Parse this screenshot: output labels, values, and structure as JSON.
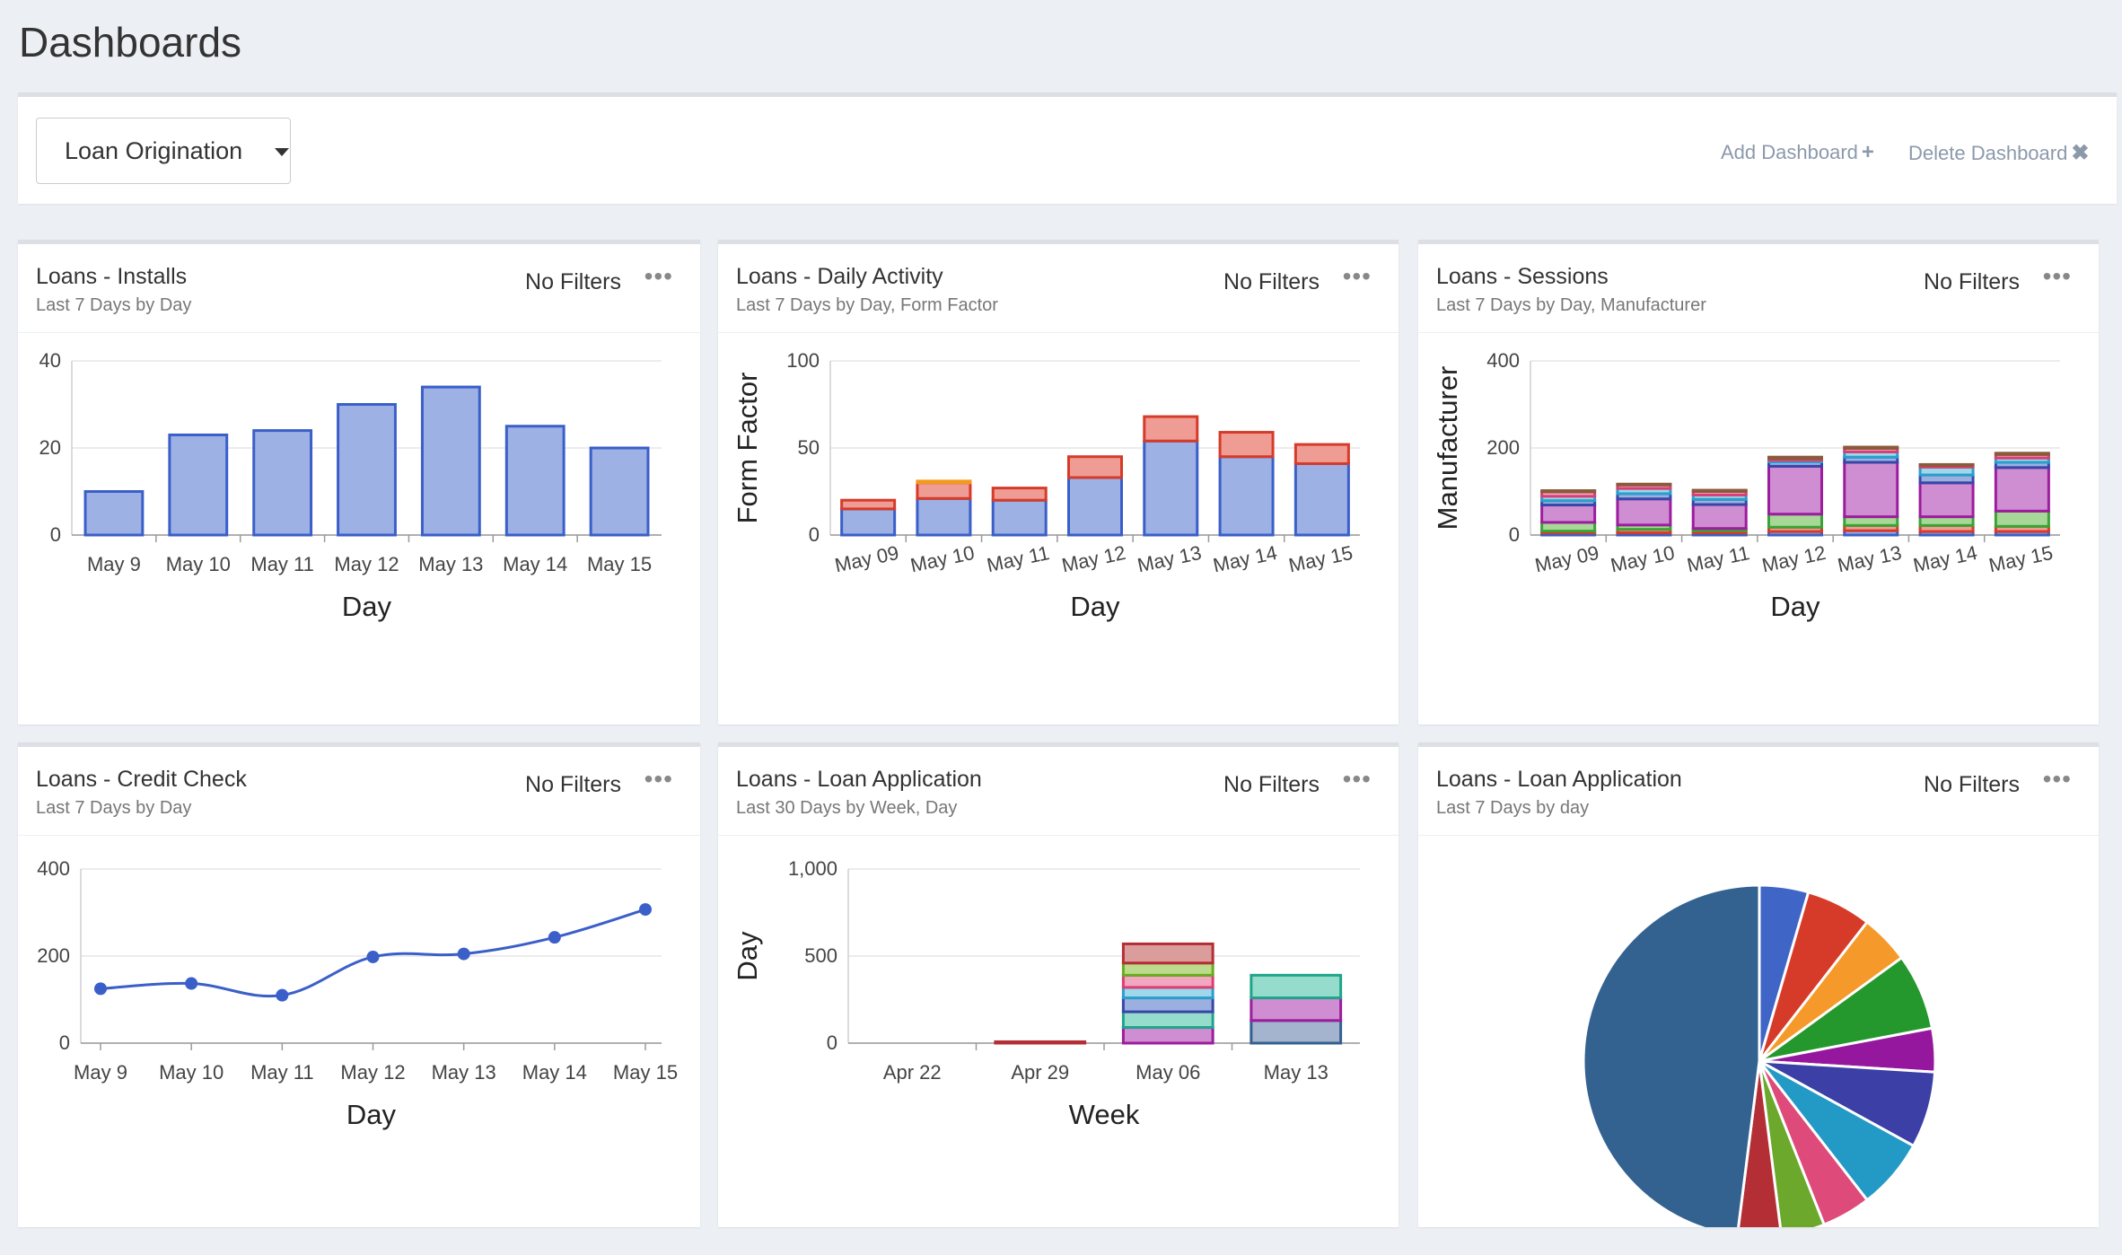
{
  "page": {
    "title": "Dashboards"
  },
  "toolbar": {
    "selected_dashboard": "Loan Origination",
    "add_label": "Add Dashboard",
    "delete_label": "Delete Dashboard"
  },
  "cards": [
    {
      "title": "Loans - Installs",
      "subtitle": "Last 7 Days  by  Day",
      "filter": "No Filters",
      "more": "•••"
    },
    {
      "title": "Loans - Daily Activity",
      "subtitle": "Last 7 Days  by  Day, Form Factor",
      "filter": "No Filters",
      "more": "•••"
    },
    {
      "title": "Loans - Sessions",
      "subtitle": "Last 7 Days  by  Day, Manufacturer",
      "filter": "No Filters",
      "more": "•••"
    },
    {
      "title": "Loans - Credit Check",
      "subtitle": "Last 7 Days  by  Day",
      "filter": "No Filters",
      "more": "•••"
    },
    {
      "title": "Loans - Loan Application",
      "subtitle": "Last 30 Days  by  Week, Day",
      "filter": "No Filters",
      "more": "•••"
    },
    {
      "title": "Loans - Loan Application",
      "subtitle": "Last 7 Days  by  day",
      "filter": "No Filters",
      "more": "•••"
    }
  ],
  "chart_data": [
    {
      "type": "bar",
      "categories": [
        "May 9",
        "May 10",
        "May 11",
        "May 12",
        "May 13",
        "May 14",
        "May 15"
      ],
      "values": [
        10,
        23,
        24,
        30,
        34,
        25,
        20
      ],
      "xlabel": "Day",
      "ylabel": "",
      "ylim": [
        0,
        40
      ],
      "yticks": [
        "0",
        "20",
        "40"
      ],
      "ytick_values": [
        0,
        20,
        40
      ],
      "colors": {
        "fill": "#9db1e4",
        "stroke": "#3b5fc9"
      },
      "grid": true
    },
    {
      "type": "bar",
      "stacked": true,
      "categories": [
        "May 09",
        "May 10",
        "May 11",
        "May 12",
        "May 13",
        "May 14",
        "May 15"
      ],
      "series": [
        {
          "values": [
            15,
            21,
            20,
            33,
            54,
            45,
            41
          ],
          "fill": "#9db1e4",
          "stroke": "#3b5fc9"
        },
        {
          "values": [
            5,
            9,
            7,
            12,
            14,
            14,
            11
          ],
          "fill": "#ee9c94",
          "stroke": "#d63b2a"
        },
        {
          "values": [
            0,
            1,
            0,
            0,
            0,
            0,
            0
          ],
          "fill": "#f6c27a",
          "stroke": "#f39a1e"
        }
      ],
      "xlabel": "Day",
      "ylabel": "Form Factor",
      "ylim": [
        0,
        100
      ],
      "yticks": [
        "0",
        "50",
        "100"
      ],
      "ytick_values": [
        0,
        50,
        100
      ],
      "grid": true
    },
    {
      "type": "bar",
      "stacked": true,
      "categories": [
        "May 09",
        "May 10",
        "May 11",
        "May 12",
        "May 13",
        "May 14",
        "May 15"
      ],
      "series": [
        {
          "values": [
            5,
            5,
            5,
            8,
            10,
            8,
            8
          ],
          "fill": "#9db1e4",
          "stroke": "#3b5fc9"
        },
        {
          "values": [
            4,
            8,
            5,
            10,
            12,
            14,
            12
          ],
          "fill": "#ee9c94",
          "stroke": "#d63b2a"
        },
        {
          "values": [
            20,
            10,
            5,
            30,
            20,
            20,
            35
          ],
          "fill": "#a8d898",
          "stroke": "#3aa336"
        },
        {
          "values": [
            40,
            60,
            55,
            110,
            125,
            78,
            100
          ],
          "fill": "#cf8ed1",
          "stroke": "#9c1d9e"
        },
        {
          "values": [
            10,
            12,
            12,
            10,
            12,
            18,
            12
          ],
          "fill": "#9cb0e0",
          "stroke": "#3946a8"
        },
        {
          "values": [
            10,
            12,
            10,
            4,
            12,
            18,
            10
          ],
          "fill": "#9fd8ea",
          "stroke": "#2a9fcc"
        },
        {
          "values": [
            10,
            8,
            8,
            4,
            8,
            4,
            8
          ],
          "fill": "#f2a7c0",
          "stroke": "#dc3d74"
        },
        {
          "values": [
            3,
            2,
            3,
            3,
            3,
            2,
            3
          ],
          "fill": "#d8b59e",
          "stroke": "#8a5a3a"
        }
      ],
      "xlabel": "Day",
      "ylabel": "Manufacturer",
      "ylim": [
        0,
        400
      ],
      "yticks": [
        "0",
        "200",
        "400"
      ],
      "ytick_values": [
        0,
        200,
        400
      ],
      "grid": true
    },
    {
      "type": "line",
      "categories": [
        "May 9",
        "May 10",
        "May 11",
        "May 12",
        "May 13",
        "May 14",
        "May 15"
      ],
      "values": [
        125,
        137,
        110,
        198,
        205,
        243,
        307
      ],
      "xlabel": "Day",
      "ylabel": "",
      "ylim": [
        0,
        400
      ],
      "yticks": [
        "0",
        "200",
        "400"
      ],
      "ytick_values": [
        0,
        200,
        400
      ],
      "colors": {
        "line": "#3b5fc9"
      },
      "grid": true
    },
    {
      "type": "bar",
      "stacked": true,
      "categories": [
        "Apr 22",
        "Apr 29",
        "May 06",
        "May 13"
      ],
      "series": [
        {
          "values": [
            0,
            0,
            0,
            130
          ],
          "fill": "#a4b4cf",
          "stroke": "#34608f"
        },
        {
          "values": [
            0,
            0,
            90,
            130
          ],
          "fill": "#cf8ed1",
          "stroke": "#9c1d9e"
        },
        {
          "values": [
            0,
            0,
            90,
            130
          ],
          "fill": "#96dccd",
          "stroke": "#1ea48a"
        },
        {
          "values": [
            0,
            0,
            80,
            0
          ],
          "fill": "#9cb0e0",
          "stroke": "#3946a8"
        },
        {
          "values": [
            0,
            0,
            60,
            0
          ],
          "fill": "#9fd8ea",
          "stroke": "#2a9fcc"
        },
        {
          "values": [
            0,
            0,
            70,
            0
          ],
          "fill": "#f2a7c0",
          "stroke": "#dc3d74"
        },
        {
          "values": [
            0,
            0,
            70,
            0
          ],
          "fill": "#bcdb8c",
          "stroke": "#6aab1f"
        },
        {
          "values": [
            0,
            8,
            110,
            0
          ],
          "fill": "#db9c9c",
          "stroke": "#b42e35"
        }
      ],
      "xlabel": "Week",
      "ylabel": "Day",
      "ylim": [
        0,
        1000
      ],
      "yticks": [
        "0",
        "500",
        "1,000"
      ],
      "ytick_values": [
        0,
        500,
        1000
      ],
      "grid": true
    },
    {
      "type": "pie",
      "values": [
        4.5,
        6,
        4.5,
        7,
        4,
        7,
        6.5,
        4.5,
        4,
        4,
        48
      ],
      "colors": [
        "#3f65c7",
        "#d63b2a",
        "#f59a2a",
        "#25982d",
        "#95179e",
        "#3b3fa6",
        "#239ac6",
        "#de4a7a",
        "#6ba82b",
        "#b42e35",
        "#336290"
      ],
      "stroke": "#ffffff"
    }
  ]
}
